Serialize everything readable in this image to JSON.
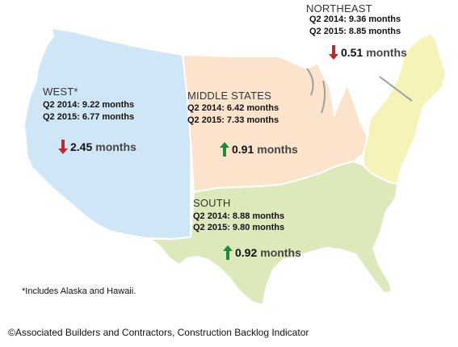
{
  "colors": {
    "west": "#cfe6f7",
    "middle": "#fce4cc",
    "south": "#dde8bb",
    "northeast": "#f6f3b8",
    "border": "#ffffff",
    "down_arrow": "#c0282e",
    "up_arrow": "#1f8a3b"
  },
  "regions": {
    "west": {
      "label": "WEST*",
      "q2_2014": "Q2 2014: 9.22 months",
      "q2_2015": "Q2 2015: 6.77 months",
      "change_value": "2.45",
      "change_unit": "months",
      "direction": "down",
      "arrow_icon": "down-arrow-icon"
    },
    "middle": {
      "label": "MIDDLE STATES",
      "q2_2014": "Q2 2014: 6.42 months",
      "q2_2015": "Q2 2015: 7.33 months",
      "change_value": "0.91",
      "change_unit": "months",
      "direction": "up",
      "arrow_icon": "up-arrow-icon"
    },
    "northeast": {
      "label": "NORTHEAST",
      "q2_2014": "Q2 2014: 9.36 months",
      "q2_2015": "Q2 2015: 8.85 months",
      "change_value": "0.51",
      "change_unit": "months",
      "direction": "down",
      "arrow_icon": "down-arrow-icon"
    },
    "south": {
      "label": "SOUTH",
      "q2_2014": "Q2 2014: 8.88 months",
      "q2_2015": "Q2 2015: 9.80 months",
      "change_value": "0.92",
      "change_unit": "months",
      "direction": "up",
      "arrow_icon": "up-arrow-icon"
    }
  },
  "footnote": "*Includes Alaska and Hawaii.",
  "copyright": "©Associated Builders and Contractors, Construction Backlog Indicator"
}
